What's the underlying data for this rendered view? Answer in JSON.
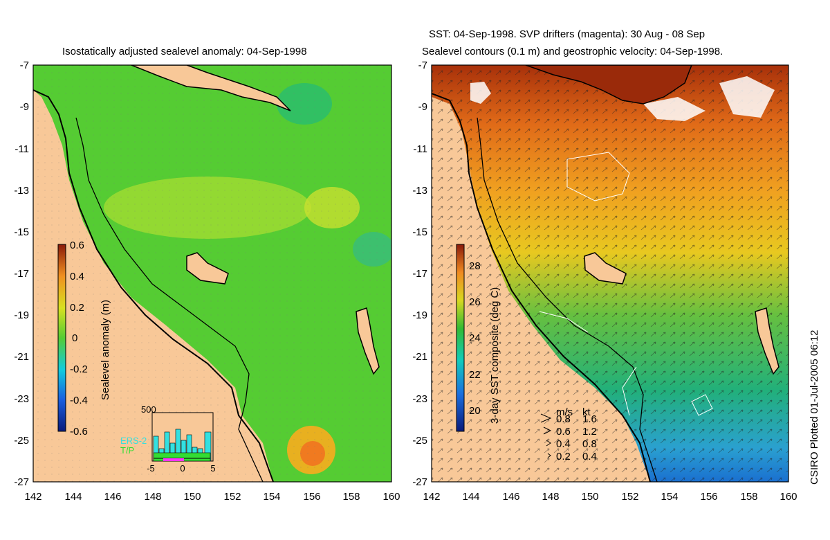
{
  "left_panel": {
    "title": "Isostatically adjusted sealevel anomaly: 04-Sep-1998",
    "y_ticks": [
      "-7",
      "-9",
      "-11",
      "-13",
      "-15",
      "-17",
      "-19",
      "-21",
      "-23",
      "-25",
      "-27"
    ],
    "x_ticks": [
      "142",
      "144",
      "146",
      "148",
      "150",
      "152",
      "154",
      "156",
      "158",
      "160"
    ],
    "colorbar": {
      "label": "Sealevel anomaly (m)",
      "ticks": [
        "0.6",
        "0.4",
        "0.2",
        "0",
        "-0.2",
        "-0.4",
        "-0.6"
      ]
    },
    "inset": {
      "y_tick": "500",
      "x_ticks": [
        "-5",
        "0",
        "5"
      ],
      "legend": [
        {
          "label": "ERS-2",
          "color": "#33e0e0"
        },
        {
          "label": "T/P",
          "color": "#33dd33"
        }
      ]
    }
  },
  "right_panel": {
    "title_line1": "SST: 04-Sep-1998. SVP drifters (magenta): 30 Aug - 08 Sep",
    "title_line2": "Sealevel contours (0.1 m) and geostrophic velocity: 04-Sep-1998.",
    "y_ticks": [
      "-7",
      "-9",
      "-11",
      "-13",
      "-15",
      "-17",
      "-19",
      "-21",
      "-23",
      "-25",
      "-27"
    ],
    "x_ticks": [
      "142",
      "144",
      "146",
      "148",
      "150",
      "152",
      "154",
      "156",
      "158",
      "160"
    ],
    "colorbar": {
      "label": "3-day SST composite (deg C)",
      "ticks": [
        "28",
        "26",
        "24",
        "22",
        "20"
      ]
    },
    "velocity_legend": {
      "header_ms": "m/s",
      "header_kt": "kt",
      "rows": [
        {
          "ms": "0.8",
          "kt": "1.6"
        },
        {
          "ms": "0.6",
          "kt": "1.2"
        },
        {
          "ms": "0.4",
          "kt": "0.8"
        },
        {
          "ms": "0.2",
          "kt": "0.4"
        }
      ]
    }
  },
  "credit": "CSIRO Plotted 01-Jul-2005 06:12",
  "colors": {
    "land": "#f8c898",
    "sea_green": "#55cc33",
    "coast": "#000000"
  }
}
